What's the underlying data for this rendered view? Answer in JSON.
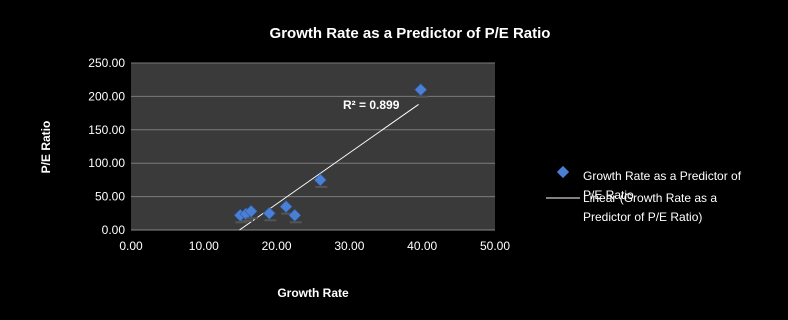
{
  "chart_data": {
    "type": "scatter",
    "title": "Growth Rate as a Predictor of P/E Ratio",
    "xlabel": "Growth Rate",
    "ylabel": "P/E  Ratio",
    "xlim": [
      0,
      50
    ],
    "ylim": [
      0,
      250
    ],
    "x_ticks": [
      "0.00",
      "10.00",
      "20.00",
      "30.00",
      "40.00",
      "50.00"
    ],
    "y_ticks": [
      "0.00",
      "50.00",
      "100.00",
      "150.00",
      "200.00",
      "250.00"
    ],
    "series": [
      {
        "name": "Growth Rate as a Predictor of P/E Ratio",
        "marker": "diamond",
        "color": "#4a7fd4",
        "points": [
          {
            "x": 15.0,
            "y": 22
          },
          {
            "x": 15.8,
            "y": 24
          },
          {
            "x": 16.5,
            "y": 28
          },
          {
            "x": 19.0,
            "y": 25
          },
          {
            "x": 21.3,
            "y": 35
          },
          {
            "x": 22.5,
            "y": 22
          },
          {
            "x": 26.0,
            "y": 75
          },
          {
            "x": 39.8,
            "y": 210
          }
        ]
      }
    ],
    "trendline": {
      "name": "Linear (Growth Rate as a Predictor of P/E Ratio)",
      "type": "linear",
      "x_range": [
        14.9,
        39.5
      ],
      "y_range": [
        0,
        188
      ],
      "color": "#ffffff"
    },
    "annotation": "R² = 0.899",
    "legend_labels": [
      [
        "Growth Rate as a Predictor of",
        "P/E Ratio"
      ],
      [
        "Linear (Growth Rate as a",
        "Predictor of P/E Ratio)"
      ]
    ],
    "grid": true,
    "legend_position": "right",
    "plot_background": "#3a3a3a",
    "background": "#000000"
  }
}
